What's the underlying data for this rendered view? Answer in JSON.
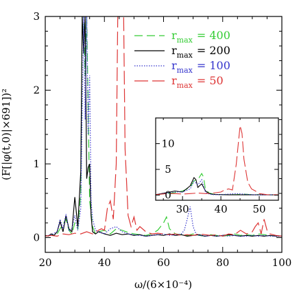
{
  "chart_data": {
    "type": "line",
    "xlabel": "ω/(6×10⁻⁴)",
    "ylabel": "(F[|φ(t,0)|×691])²",
    "xlim": [
      20,
      100
    ],
    "ylim": [
      -0.2,
      3
    ],
    "xticks": [
      20,
      40,
      60,
      80,
      100
    ],
    "yticks": [
      0,
      1,
      2,
      3
    ],
    "legend_position": "top-right",
    "series": [
      {
        "label_main": "r",
        "label_sub": "max",
        "label_eq": "= 400",
        "color": "#33cc33",
        "dash": "12,6",
        "x": [
          20,
          22,
          24,
          25,
          26,
          27,
          28,
          29,
          30,
          31,
          32,
          32.5,
          33,
          33.5,
          34,
          34.5,
          35,
          36,
          37,
          38,
          40,
          42,
          44,
          46,
          48,
          50,
          52,
          54,
          56,
          58,
          60,
          61,
          62,
          64,
          66,
          68,
          70,
          72,
          74,
          76,
          78,
          80,
          82,
          84,
          86,
          88,
          90,
          92,
          94,
          96,
          98,
          100
        ],
        "y": [
          0.02,
          0.03,
          0.05,
          0.12,
          0.18,
          0.25,
          0.1,
          0.05,
          0.2,
          0.12,
          0.6,
          3.0,
          3.0,
          2.2,
          3.0,
          1.8,
          0.5,
          0.15,
          0.05,
          0.08,
          0.1,
          0.05,
          0.12,
          0.1,
          0.07,
          0.05,
          0.04,
          0.03,
          0.05,
          0.1,
          0.2,
          0.28,
          0.12,
          0.05,
          0.04,
          0.03,
          0.05,
          0.03,
          0.02,
          0.04,
          0.03,
          0.02,
          0.03,
          0.05,
          0.03,
          0.04,
          0.03,
          0.05,
          0.04,
          0.03,
          0.02,
          0.02
        ]
      },
      {
        "label_main": "r",
        "label_sub": "max",
        "label_eq": "= 200",
        "color": "#000000",
        "dash": "",
        "x": [
          20,
          21,
          22,
          23,
          24,
          25,
          26,
          27,
          28,
          29,
          30,
          31,
          32,
          32.5,
          33,
          33.5,
          34,
          34.5,
          35,
          35.5,
          36,
          37,
          38,
          40,
          42,
          44,
          46,
          48,
          50,
          52,
          54,
          56,
          58,
          60,
          62,
          64,
          66,
          68,
          70,
          72,
          74,
          76,
          78,
          80,
          82,
          84,
          86,
          88,
          90,
          92,
          94,
          96,
          98,
          100
        ],
        "y": [
          0.03,
          0.02,
          0.05,
          0.03,
          0.08,
          0.22,
          0.08,
          0.3,
          0.12,
          0.08,
          0.55,
          0.15,
          0.9,
          3.0,
          2.5,
          3.0,
          0.8,
          0.95,
          1.0,
          0.3,
          0.08,
          0.05,
          0.08,
          0.05,
          0.03,
          0.06,
          0.04,
          0.05,
          0.03,
          0.04,
          0.02,
          0.03,
          0.04,
          0.03,
          0.05,
          0.03,
          0.04,
          0.02,
          0.03,
          0.04,
          0.02,
          0.03,
          0.02,
          0.03,
          0.04,
          0.03,
          0.02,
          0.03,
          0.02,
          0.03,
          0.02,
          0.03,
          0.02,
          0.02
        ]
      },
      {
        "label_main": "r",
        "label_sub": "max",
        "label_eq": "= 100",
        "color": "#3333cc",
        "dash": "1.5,2",
        "x": [
          20,
          22,
          24,
          25,
          26,
          27,
          28,
          29,
          30,
          31,
          32,
          33,
          33.5,
          34,
          34.5,
          35,
          35.5,
          36,
          37,
          38,
          40,
          42,
          44,
          46,
          48,
          50,
          52,
          54,
          56,
          58,
          60,
          62,
          64,
          66,
          67,
          68,
          69,
          70,
          71,
          72,
          74,
          76,
          78,
          80,
          82,
          84,
          86,
          88,
          90,
          92,
          94,
          96,
          98,
          100
        ],
        "y": [
          0.02,
          0.04,
          0.08,
          0.25,
          0.12,
          0.32,
          0.1,
          0.12,
          0.3,
          0.1,
          0.4,
          3.0,
          1.6,
          3.0,
          1.4,
          2.2,
          0.5,
          0.25,
          0.1,
          0.08,
          0.05,
          0.12,
          0.15,
          0.08,
          0.05,
          0.04,
          0.03,
          0.02,
          0.03,
          0.04,
          0.05,
          0.03,
          0.04,
          0.05,
          0.1,
          0.25,
          0.42,
          0.15,
          0.05,
          0.03,
          0.02,
          0.03,
          0.02,
          0.03,
          0.02,
          0.03,
          0.02,
          0.02,
          0.03,
          0.02,
          0.03,
          0.02,
          0.02,
          0.02
        ]
      },
      {
        "label_main": "r",
        "label_sub": "max",
        "label_eq": "= 50",
        "color": "#dd3333",
        "dash": "20,6",
        "x": [
          20,
          22,
          24,
          26,
          28,
          30,
          32,
          34,
          36,
          38,
          39,
          40,
          41,
          42,
          43,
          44,
          44.5,
          45,
          45.5,
          46,
          46.5,
          47,
          48,
          49,
          50,
          51,
          52,
          54,
          56,
          58,
          60,
          62,
          64,
          66,
          68,
          70,
          72,
          74,
          76,
          78,
          80,
          82,
          84,
          86,
          88,
          90,
          91,
          92,
          93,
          94,
          95,
          96,
          98,
          100
        ],
        "y": [
          0.02,
          0.03,
          0.02,
          0.05,
          0.04,
          0.06,
          0.05,
          0.08,
          0.05,
          0.1,
          0.12,
          0.1,
          0.4,
          0.5,
          0.25,
          1.0,
          3.0,
          3.0,
          3.0,
          3.0,
          3.0,
          1.2,
          0.3,
          0.15,
          0.28,
          0.1,
          0.15,
          0.08,
          0.05,
          0.06,
          0.05,
          0.04,
          0.05,
          0.03,
          0.04,
          0.03,
          0.05,
          0.04,
          0.03,
          0.04,
          0.02,
          0.05,
          0.04,
          0.1,
          0.05,
          0.08,
          0.15,
          0.2,
          0.05,
          0.25,
          0.1,
          0.05,
          0.03,
          0.02
        ]
      }
    ],
    "inset": {
      "xlim": [
        23,
        55
      ],
      "ylim": [
        -1,
        15
      ],
      "xticks": [
        30,
        40,
        50
      ],
      "yticks": [
        0,
        5,
        10
      ],
      "series": [
        {
          "color": "#33cc33",
          "dash": "12,6",
          "x": [
            23,
            26,
            28,
            30,
            32,
            33,
            34,
            35,
            35.5,
            36,
            37,
            38,
            40,
            42,
            44,
            46,
            48,
            50,
            52,
            55
          ],
          "y": [
            0.1,
            0.3,
            0.5,
            0.8,
            1.5,
            2.8,
            3.0,
            4.2,
            3.5,
            1.0,
            0.4,
            0.2,
            0.1,
            0.1,
            0.1,
            0.2,
            0.1,
            0.1,
            0.05,
            0.05
          ]
        },
        {
          "color": "#000000",
          "dash": "",
          "x": [
            23,
            26,
            28,
            30,
            32,
            33,
            33.5,
            34,
            35,
            36,
            37,
            38,
            40,
            42,
            44,
            46,
            48,
            50,
            52,
            55
          ],
          "y": [
            0.1,
            0.5,
            0.8,
            0.6,
            1.8,
            3.4,
            3.0,
            1.5,
            2.2,
            0.8,
            0.3,
            0.15,
            0.1,
            0.05,
            0.05,
            0.05,
            0.05,
            0.05,
            0.05,
            0.05
          ]
        },
        {
          "color": "#3333cc",
          "dash": "1.5,2",
          "x": [
            23,
            26,
            28,
            30,
            32,
            33,
            34,
            35,
            36,
            37,
            38,
            40,
            42,
            44,
            46,
            48,
            50,
            52,
            55
          ],
          "y": [
            0.1,
            0.4,
            0.6,
            0.6,
            1.2,
            2.7,
            2.0,
            3.0,
            0.5,
            0.2,
            0.1,
            0.1,
            0.2,
            0.3,
            0.2,
            0.1,
            0.05,
            0.05,
            0.05
          ]
        },
        {
          "color": "#dd3333",
          "dash": "16,5",
          "x": [
            23,
            26,
            28,
            30,
            32,
            34,
            36,
            38,
            40,
            41,
            42,
            43,
            44,
            45,
            45.5,
            46,
            47,
            48,
            49,
            50,
            52,
            55
          ],
          "y": [
            0.1,
            0.3,
            0.3,
            0.2,
            0.3,
            0.4,
            0.3,
            0.4,
            0.6,
            1.0,
            1.2,
            1.0,
            6.0,
            13.5,
            12.0,
            7.0,
            2.5,
            1.2,
            0.8,
            0.3,
            0.1,
            0.05
          ]
        }
      ]
    }
  }
}
